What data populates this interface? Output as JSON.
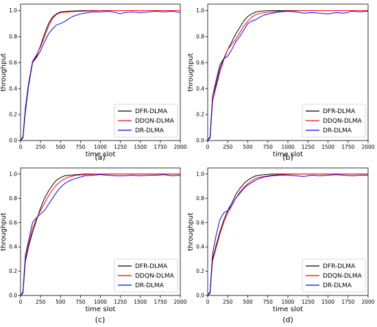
{
  "chart_data": [
    {
      "type": "line",
      "panel_label": "(a)",
      "xlabel": "time slot",
      "ylabel": "throughput",
      "xlim": [
        0,
        2000
      ],
      "ylim": [
        0,
        1.05
      ],
      "xticks": [
        0,
        250,
        500,
        750,
        1000,
        1250,
        1500,
        1750,
        2000
      ],
      "yticks": [
        0.0,
        0.2,
        0.4,
        0.6,
        0.8,
        1.0
      ],
      "grid": false,
      "legend_position": "lower-right",
      "series": [
        {
          "name": "DFR-DLMA",
          "color": "#000000",
          "x": [
            0,
            30,
            60,
            100,
            150,
            200,
            250,
            300,
            350,
            400,
            450,
            500,
            600,
            700,
            800,
            900,
            1000,
            1250,
            1500,
            1750,
            2000
          ],
          "y": [
            0.0,
            0.02,
            0.22,
            0.42,
            0.6,
            0.65,
            0.73,
            0.82,
            0.9,
            0.95,
            0.975,
            0.99,
            0.995,
            0.998,
            1.0,
            1.0,
            1.0,
            1.0,
            1.0,
            1.0,
            1.0
          ]
        },
        {
          "name": "DDQN-DLMA",
          "color": "#ff0000",
          "x": [
            0,
            30,
            60,
            100,
            150,
            200,
            250,
            300,
            350,
            400,
            450,
            500,
            600,
            700,
            800,
            900,
            1000,
            1250,
            1500,
            1750,
            2000
          ],
          "y": [
            0.0,
            0.03,
            0.25,
            0.44,
            0.61,
            0.66,
            0.72,
            0.8,
            0.88,
            0.94,
            0.97,
            0.985,
            0.99,
            0.993,
            0.996,
            0.998,
            0.999,
            1.0,
            1.0,
            1.0,
            1.0
          ]
        },
        {
          "name": "DR-DLMA",
          "color": "#0000ff",
          "x": [
            0,
            30,
            60,
            100,
            150,
            200,
            250,
            300,
            350,
            400,
            450,
            500,
            550,
            600,
            650,
            700,
            750,
            800,
            900,
            1000,
            1100,
            1200,
            1250,
            1300,
            1400,
            1500,
            1600,
            1700,
            1800,
            1900,
            2000
          ],
          "y": [
            0.0,
            0.03,
            0.24,
            0.43,
            0.6,
            0.64,
            0.69,
            0.76,
            0.82,
            0.86,
            0.89,
            0.9,
            0.915,
            0.935,
            0.955,
            0.965,
            0.975,
            0.98,
            0.99,
            0.99,
            0.995,
            0.985,
            0.975,
            0.985,
            0.99,
            0.985,
            0.99,
            0.995,
            0.99,
            0.995,
            0.985
          ]
        }
      ]
    },
    {
      "type": "line",
      "panel_label": "(b)",
      "xlabel": "time slot",
      "ylabel": "throughput",
      "xlim": [
        0,
        2000
      ],
      "ylim": [
        0,
        1.05
      ],
      "xticks": [
        0,
        250,
        500,
        750,
        1000,
        1250,
        1500,
        1750,
        2000
      ],
      "yticks": [
        0.0,
        0.2,
        0.4,
        0.6,
        0.8,
        1.0
      ],
      "grid": false,
      "legend_position": "lower-right",
      "series": [
        {
          "name": "DFR-DLMA",
          "color": "#000000",
          "x": [
            0,
            30,
            60,
            100,
            150,
            200,
            250,
            300,
            350,
            400,
            450,
            500,
            550,
            600,
            650,
            700,
            800,
            900,
            1000,
            1250,
            1500,
            1750,
            2000
          ],
          "y": [
            0.0,
            0.02,
            0.3,
            0.42,
            0.55,
            0.63,
            0.7,
            0.76,
            0.82,
            0.87,
            0.92,
            0.955,
            0.975,
            0.99,
            0.995,
            0.998,
            1.0,
            1.0,
            1.0,
            1.0,
            1.0,
            1.0,
            1.0
          ]
        },
        {
          "name": "DDQN-DLMA",
          "color": "#ff0000",
          "x": [
            0,
            30,
            60,
            100,
            150,
            200,
            250,
            300,
            350,
            400,
            450,
            500,
            550,
            600,
            700,
            800,
            900,
            1000,
            1250,
            1500,
            1750,
            2000
          ],
          "y": [
            0.0,
            0.03,
            0.3,
            0.4,
            0.52,
            0.62,
            0.7,
            0.74,
            0.78,
            0.83,
            0.88,
            0.92,
            0.95,
            0.97,
            0.985,
            0.99,
            0.995,
            0.998,
            1.0,
            1.0,
            1.0,
            1.0
          ]
        },
        {
          "name": "DR-DLMA",
          "color": "#0000ff",
          "x": [
            0,
            30,
            60,
            100,
            150,
            200,
            250,
            300,
            350,
            400,
            450,
            500,
            550,
            600,
            650,
            700,
            800,
            900,
            1000,
            1100,
            1200,
            1300,
            1400,
            1500,
            1600,
            1700,
            1800,
            1900,
            2000
          ],
          "y": [
            0.0,
            0.03,
            0.34,
            0.45,
            0.58,
            0.63,
            0.65,
            0.7,
            0.76,
            0.8,
            0.85,
            0.9,
            0.92,
            0.93,
            0.95,
            0.965,
            0.98,
            0.99,
            0.995,
            0.99,
            0.98,
            0.985,
            0.98,
            0.975,
            0.985,
            0.98,
            0.995,
            0.99,
            0.995
          ]
        }
      ]
    },
    {
      "type": "line",
      "panel_label": "(c)",
      "xlabel": "time slot",
      "ylabel": "throughput",
      "xlim": [
        0,
        2000
      ],
      "ylim": [
        0,
        1.05
      ],
      "xticks": [
        0,
        250,
        500,
        750,
        1000,
        1250,
        1500,
        1750,
        2000
      ],
      "yticks": [
        0.0,
        0.2,
        0.4,
        0.6,
        0.8,
        1.0
      ],
      "grid": false,
      "legend_position": "lower-right",
      "series": [
        {
          "name": "DFR-DLMA",
          "color": "#000000",
          "x": [
            0,
            30,
            60,
            100,
            150,
            200,
            250,
            300,
            350,
            400,
            450,
            500,
            550,
            600,
            700,
            800,
            900,
            1000,
            1250,
            1500,
            1750,
            2000
          ],
          "y": [
            0.0,
            0.02,
            0.28,
            0.4,
            0.52,
            0.62,
            0.72,
            0.8,
            0.86,
            0.91,
            0.95,
            0.97,
            0.985,
            0.99,
            0.995,
            1.0,
            1.0,
            1.0,
            1.0,
            1.0,
            1.0,
            1.0
          ]
        },
        {
          "name": "DDQN-DLMA",
          "color": "#ff0000",
          "x": [
            0,
            30,
            60,
            100,
            150,
            200,
            250,
            300,
            350,
            400,
            450,
            500,
            550,
            600,
            700,
            800,
            900,
            1000,
            1250,
            1500,
            1750,
            2000
          ],
          "y": [
            0.0,
            0.03,
            0.3,
            0.42,
            0.55,
            0.63,
            0.7,
            0.76,
            0.82,
            0.87,
            0.91,
            0.94,
            0.96,
            0.975,
            0.99,
            0.995,
            0.998,
            1.0,
            1.0,
            1.0,
            1.0,
            1.0
          ]
        },
        {
          "name": "DR-DLMA",
          "color": "#0000ff",
          "x": [
            0,
            30,
            60,
            100,
            150,
            200,
            250,
            300,
            350,
            400,
            450,
            500,
            550,
            600,
            650,
            700,
            750,
            800,
            900,
            1000,
            1100,
            1200,
            1300,
            1400,
            1500,
            1600,
            1700,
            1800,
            1900,
            2000
          ],
          "y": [
            0.0,
            0.03,
            0.33,
            0.45,
            0.6,
            0.64,
            0.67,
            0.7,
            0.75,
            0.8,
            0.85,
            0.89,
            0.92,
            0.94,
            0.955,
            0.965,
            0.975,
            0.985,
            0.99,
            0.995,
            0.99,
            0.985,
            0.985,
            0.99,
            0.985,
            0.99,
            0.99,
            0.995,
            0.985,
            0.99
          ]
        }
      ]
    },
    {
      "type": "line",
      "panel_label": "(d)",
      "xlabel": "time slot",
      "ylabel": "throughput",
      "xlim": [
        0,
        2000
      ],
      "ylim": [
        0,
        1.05
      ],
      "xticks": [
        0,
        250,
        500,
        750,
        1000,
        1250,
        1500,
        1750,
        2000
      ],
      "yticks": [
        0.0,
        0.2,
        0.4,
        0.6,
        0.8,
        1.0
      ],
      "grid": false,
      "legend_position": "lower-right",
      "series": [
        {
          "name": "DFR-DLMA",
          "color": "#000000",
          "x": [
            0,
            30,
            60,
            100,
            150,
            200,
            250,
            300,
            350,
            400,
            450,
            500,
            550,
            600,
            650,
            700,
            800,
            900,
            1000,
            1250,
            1500,
            1750,
            2000
          ],
          "y": [
            0.0,
            0.02,
            0.3,
            0.4,
            0.52,
            0.62,
            0.7,
            0.76,
            0.83,
            0.88,
            0.92,
            0.95,
            0.97,
            0.985,
            0.99,
            0.995,
            1.0,
            1.0,
            1.0,
            1.0,
            1.0,
            1.0,
            1.0
          ]
        },
        {
          "name": "DDQN-DLMA",
          "color": "#ff0000",
          "x": [
            0,
            30,
            60,
            100,
            150,
            200,
            250,
            300,
            350,
            400,
            450,
            500,
            550,
            600,
            700,
            800,
            900,
            1000,
            1250,
            1500,
            1750,
            2000
          ],
          "y": [
            0.0,
            0.03,
            0.28,
            0.38,
            0.5,
            0.6,
            0.68,
            0.74,
            0.8,
            0.85,
            0.89,
            0.92,
            0.945,
            0.965,
            0.98,
            0.99,
            0.995,
            0.998,
            1.0,
            1.0,
            1.0,
            1.0
          ]
        },
        {
          "name": "DR-DLMA",
          "color": "#0000ff",
          "x": [
            0,
            30,
            60,
            100,
            150,
            200,
            250,
            300,
            350,
            400,
            450,
            500,
            550,
            600,
            650,
            700,
            800,
            900,
            1000,
            1100,
            1200,
            1300,
            1400,
            1500,
            1600,
            1700,
            1800,
            1900,
            2000
          ],
          "y": [
            0.0,
            0.03,
            0.34,
            0.48,
            0.62,
            0.68,
            0.7,
            0.74,
            0.8,
            0.84,
            0.88,
            0.91,
            0.93,
            0.95,
            0.965,
            0.975,
            0.985,
            0.99,
            0.99,
            0.985,
            0.98,
            0.99,
            0.985,
            0.99,
            0.995,
            0.99,
            0.985,
            0.99,
            0.99
          ]
        }
      ]
    }
  ]
}
